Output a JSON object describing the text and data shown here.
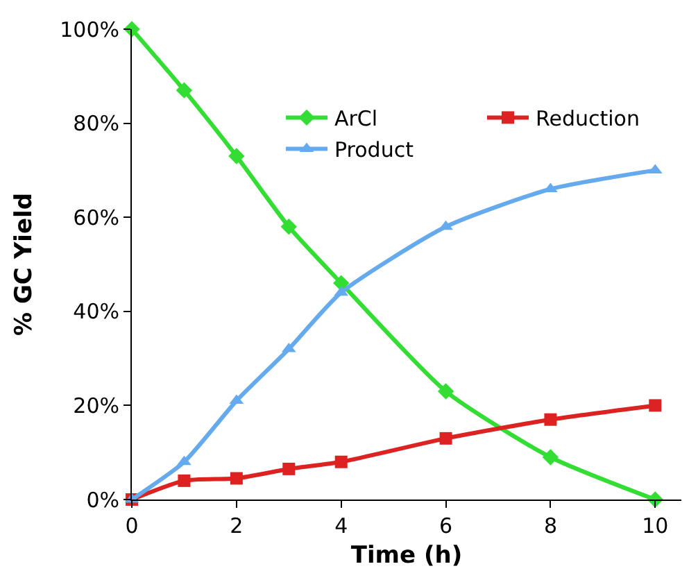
{
  "chart_data": {
    "type": "line",
    "xlabel": "Time (h)",
    "ylabel": "% GC Yield",
    "x": [
      0,
      1,
      2,
      3,
      4,
      6,
      8,
      10
    ],
    "series": [
      {
        "name": "ArCl",
        "color": "#33dd33",
        "marker": "diamond",
        "values": [
          100,
          87,
          73,
          58,
          46,
          23,
          9,
          0
        ]
      },
      {
        "name": "Reduction",
        "color": "#dd2222",
        "marker": "square",
        "values": [
          0,
          4,
          4.5,
          6.5,
          8,
          13,
          17,
          20
        ]
      },
      {
        "name": "Product",
        "color": "#66aaee",
        "marker": "triangle",
        "values": [
          0,
          8,
          21,
          32,
          44,
          58,
          66,
          70
        ]
      }
    ],
    "xlim": [
      0,
      10.5
    ],
    "xticks": [
      0,
      2,
      4,
      6,
      8,
      10
    ],
    "ylim": [
      0,
      100
    ],
    "yticks": [
      {
        "value": 0,
        "label": "0%"
      },
      {
        "value": 20,
        "label": "20%"
      },
      {
        "value": 40,
        "label": "40%"
      },
      {
        "value": 60,
        "label": "60%"
      },
      {
        "value": 80,
        "label": "80%"
      },
      {
        "value": 100,
        "label": "100%"
      }
    ],
    "legend": "top right"
  }
}
